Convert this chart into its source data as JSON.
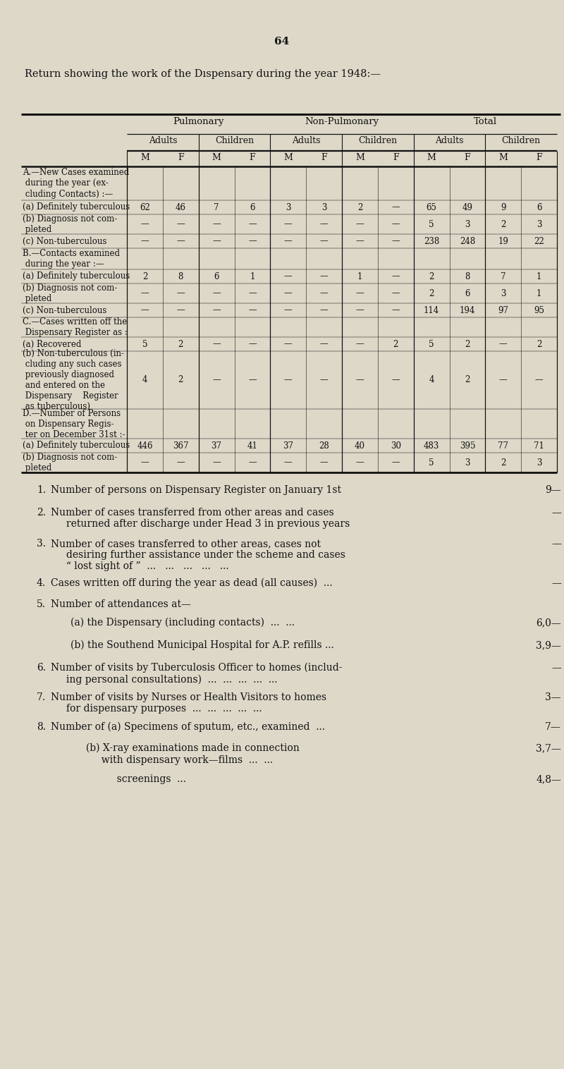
{
  "page_number": "64",
  "title": "Return showing the work of the Dıspensary during the year 1948:—",
  "background_color": "#ddd8c8",
  "text_color": "#111111",
  "table": {
    "rows": [
      {
        "label": "A.—New Cases examined\n during the year (ex-\n cluding Contacts) :—",
        "label_style": "section_header",
        "values": null
      },
      {
        "label": "(a) Definitely tuberculous",
        "label_style": "normal",
        "values": [
          "62",
          "46",
          "7",
          "6",
          "3",
          "3",
          "2",
          "—",
          "65",
          "49",
          "9",
          "6"
        ]
      },
      {
        "label": "(b) Diagnosis not com-\n pleted",
        "label_style": "normal",
        "values": [
          "—",
          "—",
          "—",
          "—",
          "—",
          "—",
          "—",
          "—",
          "5",
          "3",
          "2",
          "3"
        ]
      },
      {
        "label": "(c) Non-tuberculous",
        "label_style": "normal",
        "values": [
          "—",
          "—",
          "—",
          "—",
          "—",
          "—",
          "—",
          "—",
          "238",
          "248",
          "19",
          "22"
        ]
      },
      {
        "label": "B.—Contacts examined\n during the year :—",
        "label_style": "section_header",
        "values": null
      },
      {
        "label": "(a) Definitely tuberculous",
        "label_style": "normal",
        "values": [
          "2",
          "8",
          "6",
          "1",
          "—",
          "—",
          "1",
          "—",
          "2",
          "8",
          "7",
          "1"
        ]
      },
      {
        "label": "(b) Diagnosis not com-\n pleted",
        "label_style": "normal",
        "values": [
          "—",
          "—",
          "—",
          "—",
          "—",
          "—",
          "—",
          "—",
          "2",
          "6",
          "3",
          "1"
        ]
      },
      {
        "label": "(c) Non-tuberculous",
        "label_style": "normal",
        "values": [
          "—",
          "—",
          "—",
          "—",
          "—",
          "—",
          "—",
          "—",
          "114",
          "194",
          "97",
          "95"
        ]
      },
      {
        "label": "C.—Cases written off the\n Dispensary Register as :",
        "label_style": "section_header",
        "values": null
      },
      {
        "label": "(a) Recovered",
        "label_style": "normal",
        "values": [
          "5",
          "2",
          "—",
          "—",
          "—",
          "—",
          "—",
          "2",
          "5",
          "2",
          "—",
          "2"
        ]
      },
      {
        "label": "(b) Non-tuberculous (in-\n cluding any such cases\n previously diagnosed\n and entered on the\n Dispensary    Register\n as tuberculous)",
        "label_style": "normal",
        "values": [
          "4",
          "2",
          "—",
          "—",
          "—",
          "—",
          "—",
          "—",
          "4",
          "2",
          "—",
          "—"
        ]
      },
      {
        "label": "D.—Number of Persons\n on Dispensary Regis-\n ter on December 31st :-",
        "label_style": "section_header",
        "values": null
      },
      {
        "label": "(a) Definitely tuberculous",
        "label_style": "normal",
        "values": [
          "446",
          "367",
          "37",
          "41",
          "37",
          "28",
          "40",
          "30",
          "483",
          "395",
          "77",
          "71"
        ]
      },
      {
        "label": "(b) Diagnosis not com-\n pleted",
        "label_style": "normal",
        "values": [
          "—",
          "—",
          "—",
          "—",
          "—",
          "—",
          "—",
          "—",
          "5",
          "3",
          "2",
          "3"
        ]
      }
    ]
  },
  "list_items": [
    {
      "num": "1.",
      "text": "Number of persons on Dispensary Register on January 1st",
      "indent": false,
      "value": "9—"
    },
    {
      "num": "2.",
      "text": "Number of cases transferred from other areas and cases\n     returned after discharge under Head 3 in previous years",
      "indent": false,
      "value": "—"
    },
    {
      "num": "3.",
      "text": "Number of cases transferred to other areas, cases not\n     desiring further assistance under the scheme and cases\n     “ lost sight of ”  ...   ...   ...   ...   ...",
      "indent": false,
      "value": "—"
    },
    {
      "num": "4.",
      "text": "Cases written off during the year as dead (all causes)  ...",
      "indent": false,
      "value": "—"
    },
    {
      "num": "5.",
      "text": "Number of attendances at—",
      "indent": false,
      "value": ""
    },
    {
      "num": "",
      "text": "(a) the Dispensary (including contacts)  ...  ...",
      "indent": true,
      "value": "6,0—"
    },
    {
      "num": "",
      "text": "(b) the Southend Municipal Hospital for A.P. refills ...",
      "indent": true,
      "value": "3,9—"
    },
    {
      "num": "6.",
      "text": "Number of visits by Tuberculosis Officer to homes (includ-\n     ing personal consultations)  ...  ...  ...  ...  ...",
      "indent": false,
      "value": "—"
    },
    {
      "num": "7.",
      "text": "Number of visits by Nurses or Health Visitors to homes\n     for dispensary purposes  ...  ...  ...  ...  ...",
      "indent": false,
      "value": "3—"
    },
    {
      "num": "8.",
      "text": "Number of (a) Specimens of sputum, etc., examined  ...",
      "indent": false,
      "value": "7—"
    },
    {
      "num": "",
      "text": "     (b) X-ray examinations made in connection\n          with dispensary work—films  ...  ...",
      "indent": true,
      "value": "3,7—"
    },
    {
      "num": "",
      "text": "               screenings  ...",
      "indent": true,
      "value": "4,8—"
    }
  ]
}
